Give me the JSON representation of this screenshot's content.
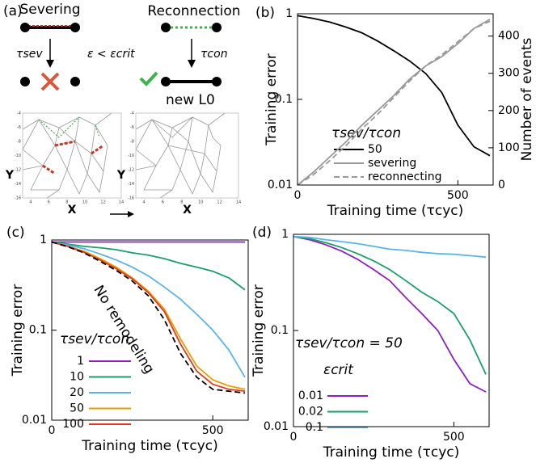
{
  "diagram": {
    "panel_label": "(a)",
    "severing": "Severing",
    "reconnection": "Reconnection",
    "tau_sev": "τsev",
    "condition": "ε < εcrit",
    "tau_con": "τcon",
    "new_length": "new L0",
    "mini_plots": [
      {
        "ylabel": "Y",
        "xlabel": "X",
        "yticks": [
          -4,
          -6,
          -8,
          -10,
          -12,
          -14,
          -16
        ],
        "xticks": [
          4,
          6,
          8,
          10,
          12,
          14
        ]
      },
      {
        "ylabel": "Y",
        "xlabel": "X",
        "yticks": [
          -4,
          -6,
          -8,
          -10,
          -12,
          -14,
          -16
        ],
        "xticks": [
          4,
          6,
          8,
          10,
          12,
          14
        ]
      }
    ]
  },
  "chart_data": [
    {
      "type": "line",
      "panel_label": "(b)",
      "xlabel": "Training time (τcyc)",
      "ylabel": "Training error",
      "y2label": "Number of events",
      "log_y": true,
      "xlim": [
        0,
        610
      ],
      "xticks": [
        0,
        500
      ],
      "ylim": [
        0.01,
        1
      ],
      "yticks": [
        0.01,
        0.1,
        1
      ],
      "y2lim": [
        0,
        460
      ],
      "y2ticks": [
        0,
        100,
        200,
        300,
        400
      ],
      "y2_color": "#999999",
      "legend_title": "τsev/τcon",
      "x": [
        0,
        50,
        100,
        150,
        200,
        250,
        300,
        350,
        400,
        450,
        500,
        550,
        600
      ],
      "series": [
        {
          "name": "50",
          "color": "#000000",
          "dash": false,
          "values": [
            0.95,
            0.88,
            0.8,
            0.7,
            0.6,
            0.48,
            0.37,
            0.28,
            0.2,
            0.12,
            0.05,
            0.028,
            0.022
          ]
        },
        {
          "name": "severing",
          "color": "#999999",
          "dash": false,
          "axis": "y2",
          "values": [
            0,
            35,
            75,
            115,
            160,
            200,
            240,
            285,
            320,
            345,
            380,
            420,
            445
          ]
        },
        {
          "name": "reconnecting",
          "color": "#999999",
          "dash": true,
          "axis": "y2",
          "values": [
            0,
            28,
            65,
            105,
            150,
            190,
            235,
            280,
            320,
            350,
            385,
            420,
            440
          ]
        }
      ]
    },
    {
      "type": "line",
      "panel_label": "(c)",
      "xlabel": "Training time (τcyc)",
      "ylabel": "Training error",
      "log_y": true,
      "xlim": [
        0,
        610
      ],
      "xticks": [
        0,
        500
      ],
      "ylim": [
        0.01,
        1
      ],
      "yticks": [
        0.01,
        0.1,
        1
      ],
      "legend_title": "τsev/τcon",
      "x": [
        0,
        50,
        100,
        150,
        200,
        250,
        300,
        350,
        400,
        450,
        500,
        550,
        600
      ],
      "series": [
        {
          "name": "1",
          "color": "#8b1fc4",
          "dash": false,
          "values": [
            0.95,
            0.95,
            0.95,
            0.95,
            0.95,
            0.95,
            0.95,
            0.95,
            0.95,
            0.95,
            0.95,
            0.95,
            0.95
          ]
        },
        {
          "name": "10",
          "color": "#1a9e6a",
          "dash": false,
          "values": [
            0.95,
            0.9,
            0.85,
            0.82,
            0.78,
            0.72,
            0.68,
            0.62,
            0.55,
            0.5,
            0.45,
            0.38,
            0.28
          ]
        },
        {
          "name": "20",
          "color": "#5ab4e5",
          "dash": false,
          "values": [
            0.95,
            0.88,
            0.8,
            0.7,
            0.6,
            0.5,
            0.4,
            0.3,
            0.22,
            0.15,
            0.1,
            0.06,
            0.03
          ]
        },
        {
          "name": "50",
          "color": "#e69f00",
          "dash": false,
          "values": [
            0.95,
            0.85,
            0.75,
            0.62,
            0.5,
            0.38,
            0.27,
            0.17,
            0.08,
            0.04,
            0.028,
            0.024,
            0.022
          ]
        },
        {
          "name": "100",
          "color": "#e03a1e",
          "dash": false,
          "values": [
            0.95,
            0.85,
            0.73,
            0.6,
            0.48,
            0.37,
            0.26,
            0.16,
            0.07,
            0.035,
            0.025,
            0.022,
            0.021
          ]
        },
        {
          "name": "No remodeling",
          "color": "#000000",
          "dash": true,
          "in_legend": false,
          "values": [
            0.95,
            0.84,
            0.72,
            0.58,
            0.46,
            0.35,
            0.24,
            0.13,
            0.055,
            0.03,
            0.022,
            0.021,
            0.02
          ]
        }
      ]
    },
    {
      "type": "line",
      "panel_label": "(d)",
      "xlabel": "Training time (τcyc)",
      "ylabel": "Training error",
      "log_y": true,
      "xlim": [
        0,
        610
      ],
      "xticks": [
        0,
        500
      ],
      "ylim": [
        0.01,
        1
      ],
      "yticks": [
        0.01,
        0.1,
        1
      ],
      "annotation": "τsev/τcon = 50",
      "legend_title": "εcrit",
      "x": [
        0,
        50,
        100,
        150,
        200,
        250,
        300,
        350,
        400,
        450,
        500,
        550,
        600
      ],
      "series": [
        {
          "name": "0.01",
          "color": "#8b1fc4",
          "dash": false,
          "values": [
            0.95,
            0.88,
            0.78,
            0.67,
            0.55,
            0.43,
            0.33,
            0.22,
            0.15,
            0.1,
            0.05,
            0.028,
            0.023
          ]
        },
        {
          "name": "0.02",
          "color": "#1a9e6a",
          "dash": false,
          "values": [
            0.95,
            0.9,
            0.82,
            0.73,
            0.63,
            0.53,
            0.43,
            0.33,
            0.25,
            0.2,
            0.15,
            0.08,
            0.035
          ]
        },
        {
          "name": "0.1",
          "color": "#5ab4e5",
          "dash": false,
          "values": [
            0.95,
            0.93,
            0.88,
            0.84,
            0.8,
            0.75,
            0.7,
            0.68,
            0.65,
            0.63,
            0.62,
            0.6,
            0.58
          ]
        }
      ]
    }
  ]
}
